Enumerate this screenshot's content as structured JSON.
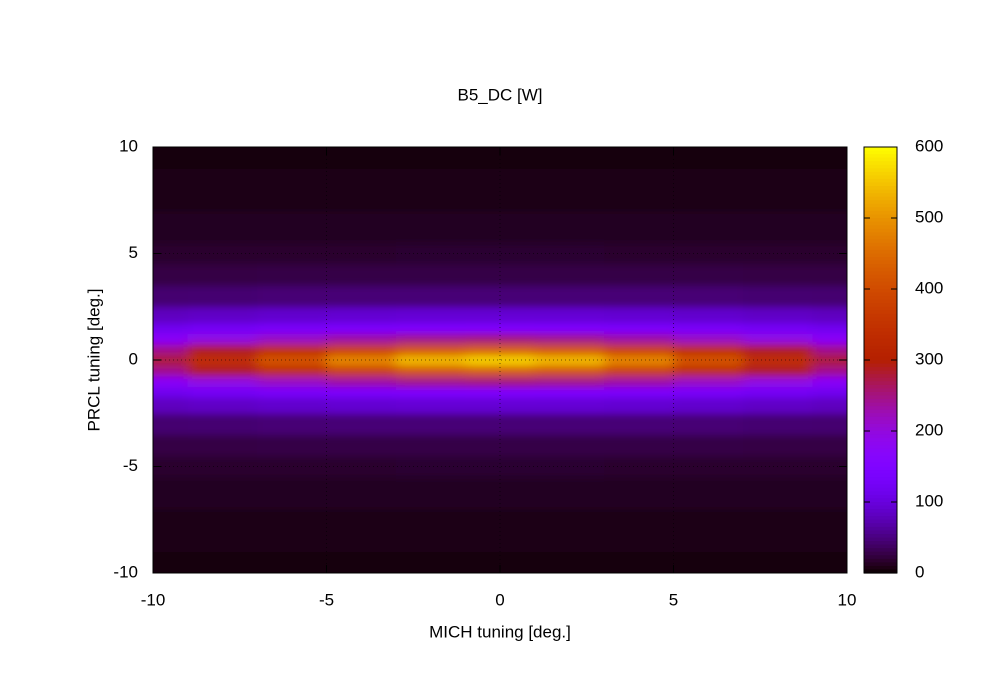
{
  "chart_data": {
    "type": "heatmap",
    "title": "B5_DC [W]",
    "x_label": "MICH tuning [deg.]",
    "y_label": "PRCL tuning [deg.]",
    "x": [
      -10,
      -8,
      -6,
      -4,
      -2,
      0,
      2,
      4,
      6,
      8,
      10
    ],
    "y": [
      -10,
      -8,
      -6,
      -5,
      -4,
      -3,
      -2,
      -1.5,
      -1,
      -0.5,
      0,
      0.5,
      1,
      1.5,
      2,
      3,
      4,
      5,
      6,
      8,
      10
    ],
    "values": [
      [
        4,
        4,
        4,
        4,
        4,
        4,
        4,
        4,
        4,
        4,
        4
      ],
      [
        7,
        7,
        7,
        7,
        7,
        7,
        7,
        7,
        7,
        7,
        7
      ],
      [
        12,
        12,
        12,
        12,
        12,
        12,
        12,
        12,
        12,
        12,
        12
      ],
      [
        17,
        17,
        17,
        17,
        18,
        18,
        18,
        17,
        17,
        17,
        17
      ],
      [
        26,
        26,
        27,
        27,
        27,
        27,
        27,
        27,
        27,
        26,
        26
      ],
      [
        43,
        44,
        45,
        46,
        46,
        46,
        46,
        46,
        45,
        44,
        43
      ],
      [
        81,
        85,
        89,
        92,
        94,
        94,
        94,
        92,
        89,
        85,
        81
      ],
      [
        117,
        127,
        135,
        142,
        147,
        148,
        147,
        142,
        135,
        127,
        117
      ],
      [
        173,
        195,
        216,
        234,
        246,
        251,
        246,
        234,
        216,
        195,
        173
      ],
      [
        243,
        287,
        336,
        381,
        415,
        428,
        415,
        381,
        336,
        287,
        243
      ],
      [
        280,
        341,
        412,
        483,
        538,
        560,
        538,
        483,
        412,
        341,
        280
      ],
      [
        243,
        287,
        336,
        381,
        415,
        428,
        415,
        381,
        336,
        287,
        243
      ],
      [
        173,
        195,
        216,
        234,
        246,
        251,
        246,
        234,
        216,
        195,
        173
      ],
      [
        117,
        127,
        135,
        142,
        147,
        148,
        147,
        142,
        135,
        127,
        117
      ],
      [
        81,
        85,
        89,
        92,
        94,
        94,
        94,
        92,
        89,
        85,
        81
      ],
      [
        43,
        44,
        45,
        46,
        46,
        46,
        46,
        46,
        45,
        44,
        43
      ],
      [
        26,
        26,
        27,
        27,
        27,
        27,
        27,
        27,
        27,
        26,
        26
      ],
      [
        17,
        17,
        17,
        17,
        18,
        18,
        18,
        17,
        17,
        17,
        17
      ],
      [
        12,
        12,
        12,
        12,
        12,
        12,
        12,
        12,
        12,
        12,
        12
      ],
      [
        7,
        7,
        7,
        7,
        7,
        7,
        7,
        7,
        7,
        7,
        7
      ],
      [
        4,
        4,
        4,
        4,
        4,
        4,
        4,
        4,
        4,
        4,
        4
      ]
    ],
    "xlim": [
      -10,
      10
    ],
    "ylim": [
      -10,
      10
    ],
    "xticks": [
      -10,
      -5,
      0,
      5,
      10
    ],
    "yticks": [
      -10,
      -5,
      0,
      5,
      10
    ],
    "clim": [
      0,
      600
    ],
    "cticks": [
      0,
      100,
      200,
      300,
      400,
      500,
      600
    ],
    "grid": true
  }
}
